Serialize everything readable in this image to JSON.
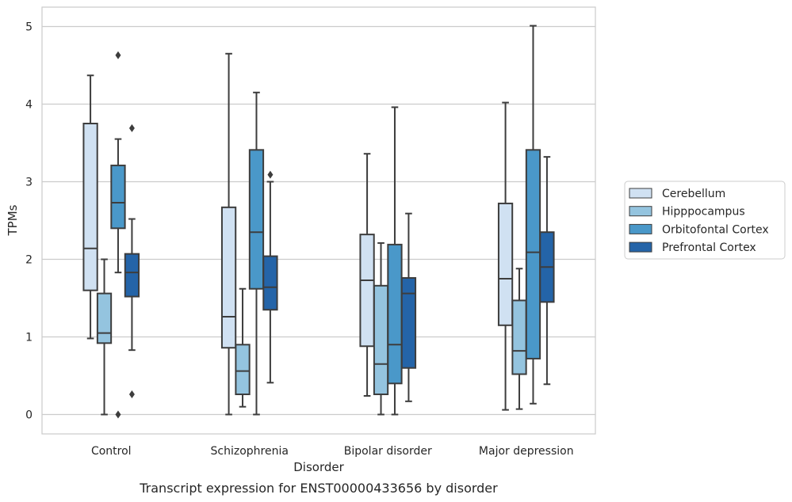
{
  "chart_data": {
    "type": "box",
    "title": "",
    "caption": "Transcript expression for ENST00000433656 by disorder",
    "xlabel": "Disorder",
    "ylabel": "TPMs",
    "ylim": [
      -0.25,
      5.25
    ],
    "yticks": [
      0,
      1,
      2,
      3,
      4,
      5
    ],
    "grid": "horizontal",
    "legend_position": "right",
    "categories": [
      "Control",
      "Schizophrenia",
      "Bipolar disorder",
      "Major depression"
    ],
    "series": [
      {
        "name": "Cerebellum",
        "color": "#d0e1f2",
        "boxes": [
          {
            "whislo": 0.98,
            "q1": 1.6,
            "med": 2.14,
            "q3": 3.75,
            "whishi": 4.37,
            "fliers": []
          },
          {
            "whislo": 0.0,
            "q1": 0.86,
            "med": 1.26,
            "q3": 2.67,
            "whishi": 4.65,
            "fliers": []
          },
          {
            "whislo": 0.24,
            "q1": 0.88,
            "med": 1.73,
            "q3": 2.32,
            "whishi": 3.36,
            "fliers": []
          },
          {
            "whislo": 0.06,
            "q1": 1.15,
            "med": 1.75,
            "q3": 2.72,
            "whishi": 4.02,
            "fliers": []
          }
        ]
      },
      {
        "name": "Hipppocampus",
        "color": "#94c4df",
        "boxes": [
          {
            "whislo": 0.0,
            "q1": 0.92,
            "med": 1.05,
            "q3": 1.56,
            "whishi": 2.0,
            "fliers": []
          },
          {
            "whislo": 0.1,
            "q1": 0.26,
            "med": 0.56,
            "q3": 0.9,
            "whishi": 1.62,
            "fliers": []
          },
          {
            "whislo": 0.0,
            "q1": 0.26,
            "med": 0.65,
            "q3": 1.66,
            "whishi": 2.21,
            "fliers": []
          },
          {
            "whislo": 0.07,
            "q1": 0.52,
            "med": 0.82,
            "q3": 1.47,
            "whishi": 1.88,
            "fliers": []
          }
        ]
      },
      {
        "name": "Orbitofontal Cortex",
        "color": "#4a98c9",
        "boxes": [
          {
            "whislo": 1.83,
            "q1": 2.4,
            "med": 2.73,
            "q3": 3.21,
            "whishi": 3.55,
            "fliers": [
              4.63,
              0.0
            ]
          },
          {
            "whislo": 0.0,
            "q1": 1.62,
            "med": 2.35,
            "q3": 3.41,
            "whishi": 4.15,
            "fliers": []
          },
          {
            "whislo": 0.0,
            "q1": 0.4,
            "med": 0.9,
            "q3": 2.19,
            "whishi": 3.96,
            "fliers": []
          },
          {
            "whislo": 0.14,
            "q1": 0.72,
            "med": 2.09,
            "q3": 3.41,
            "whishi": 5.01,
            "fliers": []
          }
        ]
      },
      {
        "name": "Prefrontal Cortex",
        "color": "#2464a8",
        "boxes": [
          {
            "whislo": 0.83,
            "q1": 1.52,
            "med": 1.83,
            "q3": 2.07,
            "whishi": 2.52,
            "fliers": [
              3.69,
              0.26
            ]
          },
          {
            "whislo": 0.41,
            "q1": 1.35,
            "med": 1.64,
            "q3": 2.04,
            "whishi": 3.0,
            "fliers": [
              3.09
            ]
          },
          {
            "whislo": 0.17,
            "q1": 0.6,
            "med": 1.56,
            "q3": 1.76,
            "whishi": 2.59,
            "fliers": []
          },
          {
            "whislo": 0.39,
            "q1": 1.45,
            "med": 1.9,
            "q3": 2.35,
            "whishi": 3.32,
            "fliers": []
          }
        ]
      }
    ]
  }
}
